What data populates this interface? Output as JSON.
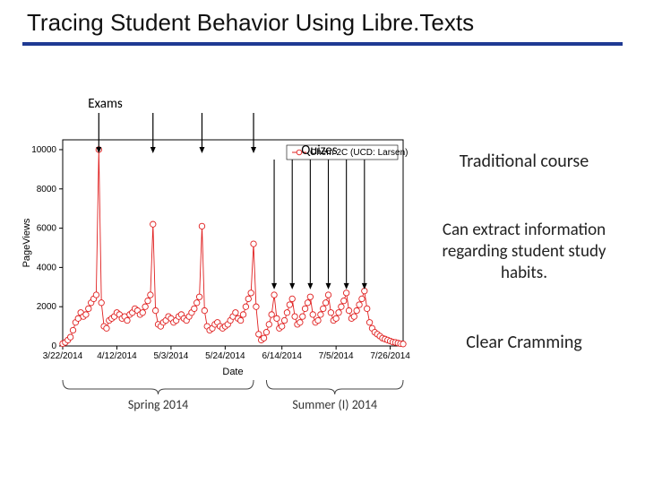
{
  "title": "Tracing Student Behavior Using Libre.Texts",
  "underline_color": "#1f3a93",
  "side": {
    "line1": "Traditional course",
    "line2": "Can extract information regarding student study habits.",
    "line3": "Clear Cramming"
  },
  "chart": {
    "type": "line",
    "series_name": "Chem 2C (UCD: Larsen)",
    "line_color": "#e02020",
    "marker_edge": "#e02020",
    "marker_fill": "#ffffff",
    "marker_size": 3.2,
    "line_width": 0.9,
    "axis_color": "#000000",
    "background_color": "#ffffff",
    "xlabel": "Date",
    "ylabel": "PageViews",
    "ylim": [
      0,
      10500
    ],
    "yticks": [
      0,
      2000,
      4000,
      6000,
      8000,
      10000
    ],
    "xtick_labels": [
      "3/22/2014",
      "4/12/2014",
      "5/3/2014",
      "5/24/2014",
      "6/14/2014",
      "7/5/2014",
      "7/26/2014"
    ],
    "xtick_pos": [
      0,
      21,
      42,
      63,
      85,
      106,
      127
    ],
    "x_domain": [
      0,
      132
    ],
    "annotations": {
      "exams_label": "Exams",
      "exams_x": [
        14,
        35,
        54,
        74
      ],
      "quizzes_label": "Quizes",
      "quizzes_x": [
        82,
        89,
        96,
        103,
        110,
        117
      ],
      "arrow_color": "#000000"
    },
    "terms": {
      "spring_label": "Spring 2014",
      "spring_range": [
        0,
        74
      ],
      "summer_label": "Summer (I) 2014",
      "summer_range": [
        79,
        132
      ]
    },
    "data": [
      [
        0,
        120
      ],
      [
        1,
        180
      ],
      [
        2,
        300
      ],
      [
        3,
        450
      ],
      [
        4,
        800
      ],
      [
        5,
        1200
      ],
      [
        6,
        1400
      ],
      [
        7,
        1700
      ],
      [
        8,
        1500
      ],
      [
        9,
        1600
      ],
      [
        10,
        1900
      ],
      [
        11,
        2200
      ],
      [
        12,
        2400
      ],
      [
        13,
        2600
      ],
      [
        14,
        10000
      ],
      [
        15,
        2200
      ],
      [
        16,
        1000
      ],
      [
        17,
        900
      ],
      [
        18,
        1300
      ],
      [
        19,
        1400
      ],
      [
        20,
        1500
      ],
      [
        21,
        1700
      ],
      [
        22,
        1600
      ],
      [
        23,
        1400
      ],
      [
        24,
        1500
      ],
      [
        25,
        1300
      ],
      [
        26,
        1600
      ],
      [
        27,
        1700
      ],
      [
        28,
        1900
      ],
      [
        29,
        1800
      ],
      [
        30,
        1600
      ],
      [
        31,
        1700
      ],
      [
        32,
        2000
      ],
      [
        33,
        2300
      ],
      [
        34,
        2600
      ],
      [
        35,
        6200
      ],
      [
        36,
        1800
      ],
      [
        37,
        1100
      ],
      [
        38,
        1000
      ],
      [
        39,
        1200
      ],
      [
        40,
        1300
      ],
      [
        41,
        1500
      ],
      [
        42,
        1400
      ],
      [
        43,
        1200
      ],
      [
        44,
        1300
      ],
      [
        45,
        1500
      ],
      [
        46,
        1600
      ],
      [
        47,
        1400
      ],
      [
        48,
        1300
      ],
      [
        49,
        1500
      ],
      [
        50,
        1700
      ],
      [
        51,
        1900
      ],
      [
        52,
        2200
      ],
      [
        53,
        2500
      ],
      [
        54,
        6100
      ],
      [
        55,
        1800
      ],
      [
        56,
        1000
      ],
      [
        57,
        800
      ],
      [
        58,
        900
      ],
      [
        59,
        1100
      ],
      [
        60,
        1200
      ],
      [
        61,
        1000
      ],
      [
        62,
        900
      ],
      [
        63,
        1000
      ],
      [
        64,
        1100
      ],
      [
        65,
        1300
      ],
      [
        66,
        1500
      ],
      [
        67,
        1700
      ],
      [
        68,
        1400
      ],
      [
        69,
        1300
      ],
      [
        70,
        1600
      ],
      [
        71,
        2000
      ],
      [
        72,
        2400
      ],
      [
        73,
        2700
      ],
      [
        74,
        5200
      ],
      [
        75,
        2000
      ],
      [
        76,
        600
      ],
      [
        77,
        300
      ],
      [
        78,
        400
      ],
      [
        79,
        700
      ],
      [
        80,
        1100
      ],
      [
        81,
        1600
      ],
      [
        82,
        2600
      ],
      [
        83,
        1400
      ],
      [
        84,
        900
      ],
      [
        85,
        1000
      ],
      [
        86,
        1300
      ],
      [
        87,
        1700
      ],
      [
        88,
        2100
      ],
      [
        89,
        2400
      ],
      [
        90,
        1500
      ],
      [
        91,
        1100
      ],
      [
        92,
        1200
      ],
      [
        93,
        1500
      ],
      [
        94,
        1900
      ],
      [
        95,
        2200
      ],
      [
        96,
        2500
      ],
      [
        97,
        1600
      ],
      [
        98,
        1200
      ],
      [
        99,
        1300
      ],
      [
        100,
        1600
      ],
      [
        101,
        1900
      ],
      [
        102,
        2200
      ],
      [
        103,
        2600
      ],
      [
        104,
        1700
      ],
      [
        105,
        1300
      ],
      [
        106,
        1400
      ],
      [
        107,
        1700
      ],
      [
        108,
        2000
      ],
      [
        109,
        2300
      ],
      [
        110,
        2700
      ],
      [
        111,
        1800
      ],
      [
        112,
        1400
      ],
      [
        113,
        1500
      ],
      [
        114,
        1800
      ],
      [
        115,
        2100
      ],
      [
        116,
        2400
      ],
      [
        117,
        2800
      ],
      [
        118,
        1900
      ],
      [
        119,
        1200
      ],
      [
        120,
        900
      ],
      [
        121,
        700
      ],
      [
        122,
        600
      ],
      [
        123,
        500
      ],
      [
        124,
        400
      ],
      [
        125,
        350
      ],
      [
        126,
        300
      ],
      [
        127,
        250
      ],
      [
        128,
        200
      ],
      [
        129,
        180
      ],
      [
        130,
        150
      ],
      [
        131,
        120
      ],
      [
        132,
        100
      ]
    ]
  }
}
